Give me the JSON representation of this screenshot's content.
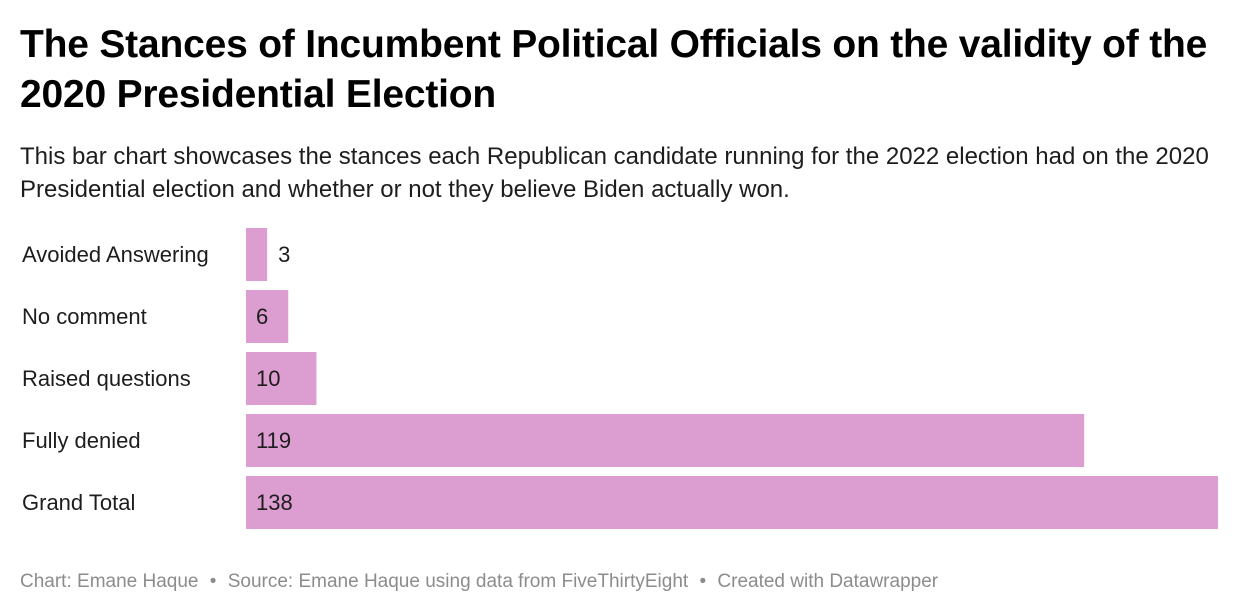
{
  "title": "The Stances of Incumbent Political Officials on the validity of the 2020 Presidential Election",
  "subtitle": "This bar chart showcases the stances each Republican candidate running for the 2022 election had on the 2020 Presidential election and whether or not they believe Biden actually won.",
  "footer": {
    "chart_credit": "Chart: Emane Haque",
    "source": "Source: Emane Haque using data from FiveThirtyEight",
    "created_with": "Created with Datawrapper",
    "separator": "•"
  },
  "colors": {
    "bar": "#dc9dd1",
    "label_text": "#1d1d1d",
    "footer_text": "#8c8c8c"
  },
  "chart_data": {
    "type": "bar",
    "orientation": "horizontal",
    "title": "The Stances of Incumbent Political Officials on the validity of the 2020 Presidential Election",
    "categories": [
      "Avoided Answering",
      "No comment",
      "Raised questions",
      "Fully denied",
      "Grand Total"
    ],
    "values": [
      3,
      6,
      10,
      119,
      138
    ],
    "xlim": [
      0,
      138
    ],
    "grid": false,
    "legend": "none",
    "data_labels": true
  }
}
